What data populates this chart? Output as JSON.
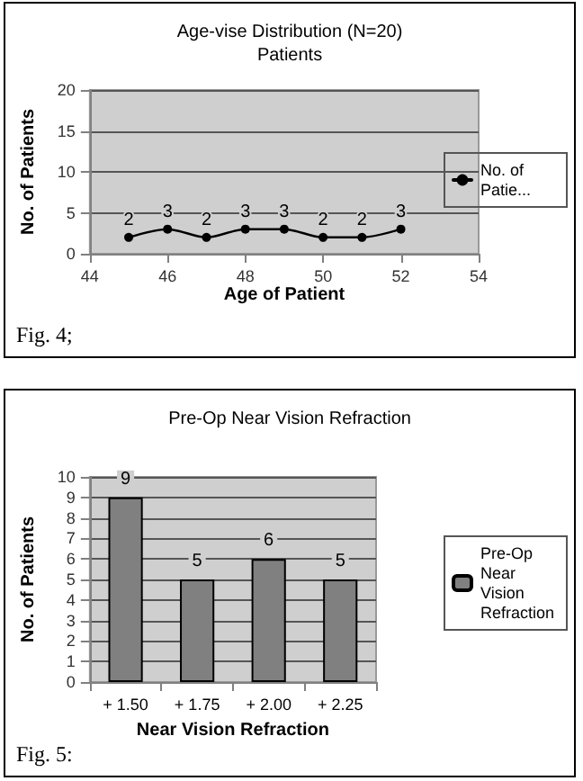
{
  "chart_data": [
    {
      "type": "line",
      "title": "Age-vise Distribution (N=20)",
      "subtitle": "Patients",
      "xlabel": "Age of Patient",
      "ylabel": "No. of Patients",
      "x": [
        45,
        46,
        47,
        48,
        49,
        50,
        51,
        52
      ],
      "series": [
        {
          "name": "No. of Patie...",
          "color": "#000000",
          "values": [
            2,
            3,
            2,
            3,
            3,
            2,
            2,
            3
          ]
        }
      ],
      "xlim": [
        44,
        54
      ],
      "xticks": [
        44,
        46,
        48,
        50,
        52,
        54
      ],
      "ylim": [
        0,
        20
      ],
      "yticks": [
        0,
        5,
        10,
        15,
        20
      ],
      "grid": "y",
      "legend": "right",
      "marker": "circle",
      "line_style": "solid",
      "data_labels": true,
      "annotations": [
        "Fig. 4;"
      ]
    },
    {
      "type": "bar",
      "title": "Pre-Op Near Vision Refraction",
      "xlabel": "Near Vision Refraction",
      "ylabel": "No. of Patients",
      "categories": [
        "+ 1.50",
        "+ 1.75",
        "+ 2.00",
        "+ 2.25"
      ],
      "series": [
        {
          "name": "Pre-Op Near Vision Refraction",
          "color": "#808080",
          "values": [
            9,
            5,
            6,
            5
          ]
        }
      ],
      "ylim": [
        0,
        10
      ],
      "yticks": [
        0,
        1,
        2,
        3,
        4,
        5,
        6,
        7,
        8,
        9,
        10
      ],
      "grid": "y",
      "legend": "right",
      "data_labels": true,
      "annotations": [
        "Fig. 5:"
      ]
    }
  ]
}
